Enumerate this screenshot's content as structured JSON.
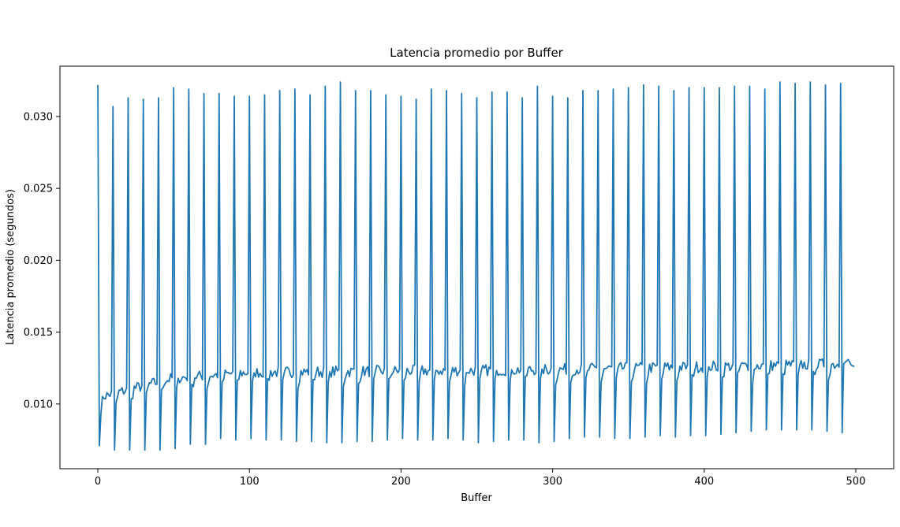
{
  "chart_data": {
    "type": "line",
    "title": "Latencia promedio por Buffer",
    "xlabel": "Buffer",
    "ylabel": "Latencia promedio (segundos)",
    "xlim": [
      -25,
      525
    ],
    "ylim": [
      0.0055,
      0.0335
    ],
    "xticks": [
      0,
      100,
      200,
      300,
      400,
      500
    ],
    "xtick_labels": [
      "0",
      "100",
      "200",
      "300",
      "400",
      "500"
    ],
    "yticks": [
      0.01,
      0.015,
      0.02,
      0.025,
      0.03
    ],
    "ytick_labels": [
      "0.010",
      "0.015",
      "0.020",
      "0.025",
      "0.030"
    ],
    "grid": false,
    "series": [
      {
        "color": "#1f77b4",
        "x_start": 0,
        "x_end": 499,
        "period": 10,
        "peaks": [
          {
            "x": 0,
            "y": 0.0322
          },
          {
            "x": 10,
            "y": 0.0307
          },
          {
            "x": 20,
            "y": 0.0313
          },
          {
            "x": 30,
            "y": 0.0312
          },
          {
            "x": 40,
            "y": 0.0313
          },
          {
            "x": 50,
            "y": 0.032
          },
          {
            "x": 60,
            "y": 0.0319
          },
          {
            "x": 70,
            "y": 0.0316
          },
          {
            "x": 80,
            "y": 0.0316
          },
          {
            "x": 90,
            "y": 0.0314
          },
          {
            "x": 100,
            "y": 0.0314
          },
          {
            "x": 110,
            "y": 0.0315
          },
          {
            "x": 120,
            "y": 0.0318
          },
          {
            "x": 130,
            "y": 0.0319
          },
          {
            "x": 140,
            "y": 0.0315
          },
          {
            "x": 150,
            "y": 0.0321
          },
          {
            "x": 160,
            "y": 0.0324
          },
          {
            "x": 170,
            "y": 0.0318
          },
          {
            "x": 180,
            "y": 0.0318
          },
          {
            "x": 190,
            "y": 0.0315
          },
          {
            "x": 200,
            "y": 0.0314
          },
          {
            "x": 210,
            "y": 0.0312
          },
          {
            "x": 220,
            "y": 0.0319
          },
          {
            "x": 230,
            "y": 0.0318
          },
          {
            "x": 240,
            "y": 0.0316
          },
          {
            "x": 250,
            "y": 0.0313
          },
          {
            "x": 260,
            "y": 0.0317
          },
          {
            "x": 270,
            "y": 0.0317
          },
          {
            "x": 280,
            "y": 0.0313
          },
          {
            "x": 290,
            "y": 0.0321
          },
          {
            "x": 300,
            "y": 0.0314
          },
          {
            "x": 310,
            "y": 0.0313
          },
          {
            "x": 320,
            "y": 0.0318
          },
          {
            "x": 330,
            "y": 0.0318
          },
          {
            "x": 340,
            "y": 0.0319
          },
          {
            "x": 350,
            "y": 0.032
          },
          {
            "x": 360,
            "y": 0.0322
          },
          {
            "x": 370,
            "y": 0.0321
          },
          {
            "x": 380,
            "y": 0.0318
          },
          {
            "x": 390,
            "y": 0.032
          },
          {
            "x": 400,
            "y": 0.032
          },
          {
            "x": 410,
            "y": 0.032
          },
          {
            "x": 420,
            "y": 0.0321
          },
          {
            "x": 430,
            "y": 0.0321
          },
          {
            "x": 440,
            "y": 0.0319
          },
          {
            "x": 450,
            "y": 0.0324
          },
          {
            "x": 460,
            "y": 0.0323
          },
          {
            "x": 470,
            "y": 0.0324
          },
          {
            "x": 480,
            "y": 0.0322
          },
          {
            "x": 490,
            "y": 0.0323
          }
        ],
        "troughs": [
          {
            "x": 1,
            "y": 0.0071
          },
          {
            "x": 11,
            "y": 0.0068
          },
          {
            "x": 21,
            "y": 0.0068
          },
          {
            "x": 31,
            "y": 0.0068
          },
          {
            "x": 41,
            "y": 0.0068
          },
          {
            "x": 51,
            "y": 0.0069
          },
          {
            "x": 61,
            "y": 0.0072
          },
          {
            "x": 71,
            "y": 0.0072
          },
          {
            "x": 81,
            "y": 0.0076
          },
          {
            "x": 91,
            "y": 0.0075
          },
          {
            "x": 101,
            "y": 0.0076
          },
          {
            "x": 111,
            "y": 0.0075
          },
          {
            "x": 121,
            "y": 0.0075
          },
          {
            "x": 131,
            "y": 0.0074
          },
          {
            "x": 141,
            "y": 0.0074
          },
          {
            "x": 151,
            "y": 0.0073
          },
          {
            "x": 161,
            "y": 0.0073
          },
          {
            "x": 171,
            "y": 0.0074
          },
          {
            "x": 181,
            "y": 0.0074
          },
          {
            "x": 191,
            "y": 0.0075
          },
          {
            "x": 201,
            "y": 0.0076
          },
          {
            "x": 211,
            "y": 0.0075
          },
          {
            "x": 221,
            "y": 0.0075
          },
          {
            "x": 231,
            "y": 0.0076
          },
          {
            "x": 241,
            "y": 0.0075
          },
          {
            "x": 251,
            "y": 0.0073
          },
          {
            "x": 261,
            "y": 0.0074
          },
          {
            "x": 271,
            "y": 0.0075
          },
          {
            "x": 281,
            "y": 0.0075
          },
          {
            "x": 291,
            "y": 0.0073
          },
          {
            "x": 301,
            "y": 0.0074
          },
          {
            "x": 311,
            "y": 0.0076
          },
          {
            "x": 321,
            "y": 0.0077
          },
          {
            "x": 331,
            "y": 0.0077
          },
          {
            "x": 341,
            "y": 0.0076
          },
          {
            "x": 351,
            "y": 0.0076
          },
          {
            "x": 361,
            "y": 0.0077
          },
          {
            "x": 371,
            "y": 0.0078
          },
          {
            "x": 381,
            "y": 0.0077
          },
          {
            "x": 391,
            "y": 0.0078
          },
          {
            "x": 401,
            "y": 0.0078
          },
          {
            "x": 411,
            "y": 0.0079
          },
          {
            "x": 421,
            "y": 0.008
          },
          {
            "x": 431,
            "y": 0.0081
          },
          {
            "x": 441,
            "y": 0.0082
          },
          {
            "x": 451,
            "y": 0.0082
          },
          {
            "x": 461,
            "y": 0.0082
          },
          {
            "x": 471,
            "y": 0.0082
          },
          {
            "x": 481,
            "y": 0.0081
          },
          {
            "x": 491,
            "y": 0.008
          }
        ],
        "baseline": [
          {
            "x": 2,
            "y": 0.0105
          },
          {
            "x": 50,
            "y": 0.0118
          },
          {
            "x": 100,
            "y": 0.0122
          },
          {
            "x": 200,
            "y": 0.0123
          },
          {
            "x": 300,
            "y": 0.0124
          },
          {
            "x": 400,
            "y": 0.0126
          },
          {
            "x": 499,
            "y": 0.0128
          }
        ],
        "end_points": [
          {
            "x": 492,
            "y": 0.0128
          },
          {
            "x": 495,
            "y": 0.0131
          },
          {
            "x": 497,
            "y": 0.0127
          },
          {
            "x": 499,
            "y": 0.0126
          }
        ]
      }
    ]
  }
}
